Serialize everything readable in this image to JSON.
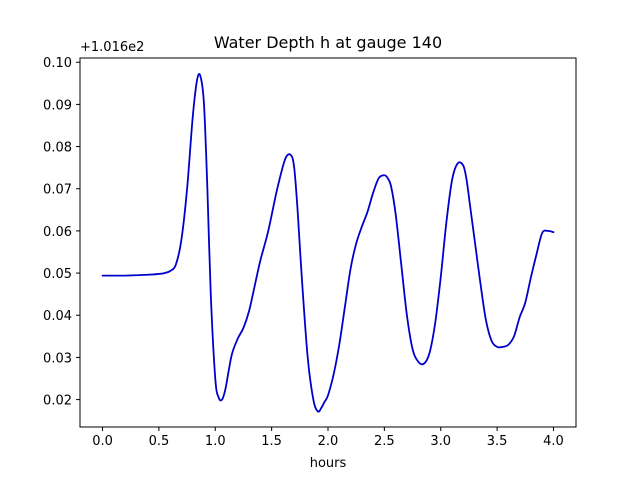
{
  "chart_data": {
    "type": "line",
    "title": "Water Depth h at gauge 140",
    "xlabel": "hours",
    "ylabel": "",
    "offset_text": "+1.016e2",
    "xlim": [
      -0.2,
      4.2
    ],
    "ylim": [
      0.0135,
      0.101
    ],
    "x_ticks": [
      0.0,
      0.5,
      1.0,
      1.5,
      2.0,
      2.5,
      3.0,
      3.5,
      4.0
    ],
    "x_tick_labels": [
      "0.0",
      "0.5",
      "1.0",
      "1.5",
      "2.0",
      "2.5",
      "3.0",
      "3.5",
      "4.0"
    ],
    "y_ticks": [
      0.02,
      0.03,
      0.04,
      0.05,
      0.06,
      0.07,
      0.08,
      0.09,
      0.1
    ],
    "y_tick_labels": [
      "0.02",
      "0.03",
      "0.04",
      "0.05",
      "0.06",
      "0.07",
      "0.08",
      "0.09",
      "0.10"
    ],
    "grid": false,
    "legend": "none",
    "series": [
      {
        "color": "#0000cc",
        "x": [
          0.0,
          0.2,
          0.4,
          0.5,
          0.55,
          0.6,
          0.65,
          0.7,
          0.75,
          0.8,
          0.84,
          0.87,
          0.9,
          0.93,
          0.96,
          1.0,
          1.03,
          1.06,
          1.09,
          1.12,
          1.15,
          1.2,
          1.25,
          1.3,
          1.35,
          1.4,
          1.47,
          1.55,
          1.62,
          1.67,
          1.7,
          1.73,
          1.77,
          1.82,
          1.87,
          1.91,
          1.94,
          1.97,
          2.0,
          2.05,
          2.1,
          2.15,
          2.2,
          2.25,
          2.3,
          2.35,
          2.4,
          2.45,
          2.5,
          2.53,
          2.56,
          2.6,
          2.65,
          2.7,
          2.75,
          2.8,
          2.85,
          2.9,
          2.95,
          3.0,
          3.05,
          3.1,
          3.15,
          3.2,
          3.23,
          3.26,
          3.3,
          3.35,
          3.4,
          3.45,
          3.5,
          3.55,
          3.6,
          3.65,
          3.7,
          3.75,
          3.8,
          3.85,
          3.9,
          3.95,
          4.0
        ],
        "values": [
          0.0494,
          0.0494,
          0.0496,
          0.0498,
          0.05,
          0.0505,
          0.052,
          0.058,
          0.07,
          0.087,
          0.096,
          0.0965,
          0.09,
          0.07,
          0.045,
          0.025,
          0.0205,
          0.02,
          0.0225,
          0.027,
          0.031,
          0.0345,
          0.037,
          0.041,
          0.047,
          0.053,
          0.06,
          0.07,
          0.077,
          0.078,
          0.075,
          0.065,
          0.048,
          0.03,
          0.02,
          0.0172,
          0.018,
          0.0195,
          0.021,
          0.026,
          0.033,
          0.042,
          0.051,
          0.057,
          0.061,
          0.0645,
          0.069,
          0.0725,
          0.0732,
          0.0725,
          0.0705,
          0.064,
          0.052,
          0.04,
          0.032,
          0.029,
          0.0285,
          0.031,
          0.038,
          0.049,
          0.062,
          0.072,
          0.076,
          0.0755,
          0.072,
          0.066,
          0.058,
          0.048,
          0.039,
          0.034,
          0.0325,
          0.0325,
          0.033,
          0.035,
          0.0395,
          0.043,
          0.049,
          0.0545,
          0.0595,
          0.06,
          0.0597
        ]
      }
    ]
  }
}
